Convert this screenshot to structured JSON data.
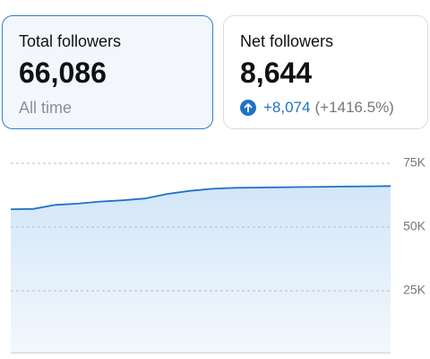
{
  "cards": [
    {
      "title": "Total followers",
      "value": "66,086",
      "note": "All time"
    },
    {
      "title": "Net followers",
      "value": "8,644",
      "change": "+8,074",
      "change_pct": "(+1416.5%)"
    }
  ],
  "chart_data": {
    "type": "area",
    "categories": [
      null,
      null,
      null,
      null,
      null,
      null,
      null,
      null,
      null,
      null,
      null,
      null,
      null,
      null,
      null,
      null,
      null,
      null
    ],
    "values": [
      57000,
      57100,
      58700,
      59200,
      60000,
      60500,
      61200,
      63000,
      64200,
      65000,
      65400,
      65500,
      65600,
      65700,
      65800,
      65900,
      66000,
      66086
    ],
    "color": "#1f72c6",
    "ylim": [
      0,
      75000
    ],
    "yticks": [
      {
        "value": 25000,
        "label": "25K"
      },
      {
        "value": 50000,
        "label": "50K"
      },
      {
        "value": 75000,
        "label": "75K"
      }
    ],
    "grid": true
  }
}
